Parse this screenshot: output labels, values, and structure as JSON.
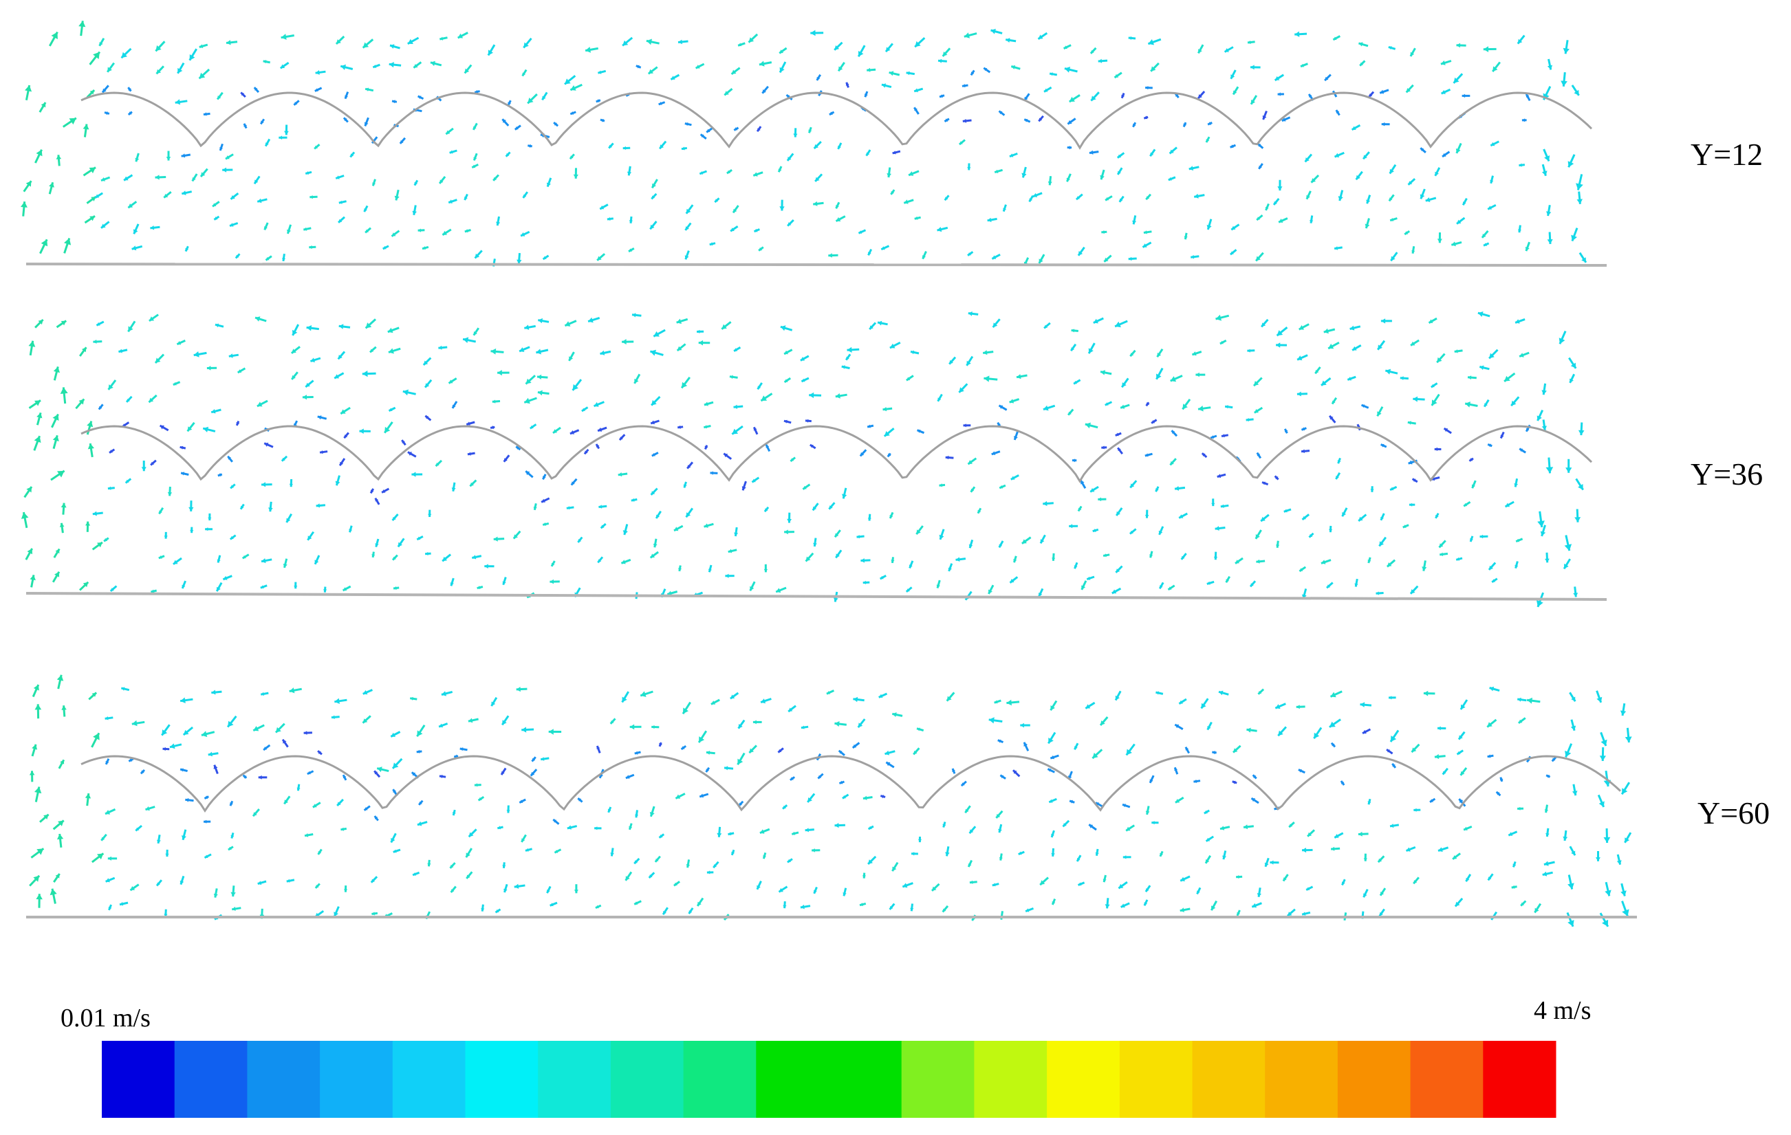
{
  "panels": [
    {
      "id": "y12",
      "label": "Y=12",
      "vary": 0.1,
      "mid_intensity": 0.1
    },
    {
      "id": "y36",
      "label": "Y=36",
      "vary": 0.0,
      "mid_intensity": 0.55
    },
    {
      "id": "y60",
      "label": "Y=60",
      "vary": 0.05,
      "mid_intensity": 0.25
    }
  ],
  "wave": {
    "peaks": 9
  },
  "colorbar": {
    "min_label": "0.01 m/s",
    "max_label": "4 m/s",
    "colors": [
      "#0000e0",
      "#1060f0",
      "#1090f0",
      "#10b0f8",
      "#10d0f8",
      "#00f0f8",
      "#10e8d8",
      "#10e8b0",
      "#10e880",
      "#00e000",
      "#00e000",
      "#80f020",
      "#c0f810",
      "#f8f800",
      "#f8e000",
      "#f8c800",
      "#f8b000",
      "#f89000",
      "#f86010",
      "#f80000"
    ]
  },
  "colors": {
    "arrow_main": "#1ee0cc",
    "arrow_cyan": "#14d8e8",
    "arrow_green": "#22e0a8",
    "arrow_blue": "#1890f0",
    "arrow_deep": "#3050e8",
    "wall": "#b4b4b4",
    "curve": "#a0a0a0"
  }
}
